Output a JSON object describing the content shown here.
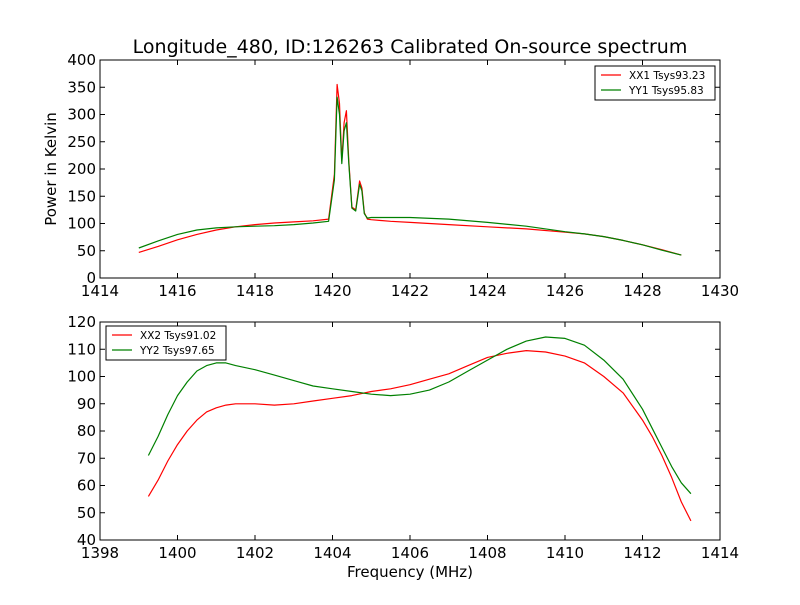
{
  "figure": {
    "title": "Longitude_480, ID:126263 Calibrated On-source spectrum",
    "ylabel": "Power in Kelvin",
    "xlabel": "Frequency (MHz)"
  },
  "chart_data": [
    {
      "type": "line",
      "title": "Longitude_480, ID:126263 Calibrated On-source spectrum",
      "xlabel": "",
      "ylabel": "Power in Kelvin",
      "xlim": [
        1414,
        1430
      ],
      "ylim": [
        0,
        400
      ],
      "xticks": [
        1414,
        1416,
        1418,
        1420,
        1422,
        1424,
        1426,
        1428,
        1430
      ],
      "yticks": [
        0,
        50,
        100,
        150,
        200,
        250,
        300,
        350,
        400
      ],
      "grid": false,
      "legend_position": "upper right",
      "series": [
        {
          "name": "XX1 Tsys93.23",
          "color": "#ff0000",
          "x": [
            1415.0,
            1415.5,
            1416.0,
            1416.5,
            1417.0,
            1417.5,
            1418.0,
            1418.5,
            1419.0,
            1419.5,
            1419.9,
            1420.05,
            1420.12,
            1420.18,
            1420.24,
            1420.3,
            1420.36,
            1420.42,
            1420.5,
            1420.6,
            1420.7,
            1420.76,
            1420.82,
            1420.9,
            1421.0,
            1421.5,
            1422.0,
            1423.0,
            1424.0,
            1425.0,
            1426.0,
            1426.5,
            1427.0,
            1427.5,
            1428.0,
            1428.5,
            1429.0
          ],
          "y": [
            47,
            58,
            70,
            80,
            88,
            94,
            98,
            101,
            103,
            105,
            108,
            190,
            355,
            320,
            215,
            285,
            307,
            215,
            130,
            125,
            178,
            165,
            120,
            108,
            107,
            104,
            102,
            98,
            94,
            90,
            84,
            81,
            76,
            69,
            61,
            52,
            42
          ]
        },
        {
          "name": "YY1 Tsys95.83",
          "color": "#008000",
          "x": [
            1415.0,
            1415.5,
            1416.0,
            1416.5,
            1417.0,
            1417.5,
            1418.0,
            1418.5,
            1419.0,
            1419.5,
            1419.9,
            1420.05,
            1420.12,
            1420.18,
            1420.24,
            1420.3,
            1420.36,
            1420.42,
            1420.5,
            1420.6,
            1420.7,
            1420.76,
            1420.82,
            1420.9,
            1421.0,
            1421.5,
            1422.0,
            1423.0,
            1424.0,
            1425.0,
            1426.0,
            1426.5,
            1427.0,
            1427.5,
            1428.0,
            1428.5,
            1429.0
          ],
          "y": [
            55,
            68,
            80,
            88,
            92,
            94,
            95,
            96,
            98,
            101,
            104,
            180,
            332,
            300,
            210,
            270,
            285,
            210,
            128,
            123,
            172,
            160,
            118,
            110,
            111,
            111,
            111,
            108,
            102,
            95,
            85,
            81,
            76,
            69,
            61,
            51,
            42
          ]
        }
      ]
    },
    {
      "type": "line",
      "title": "",
      "xlabel": "Frequency (MHz)",
      "ylabel": "",
      "xlim": [
        1398,
        1414
      ],
      "ylim": [
        40,
        120
      ],
      "xticks": [
        1398,
        1400,
        1402,
        1404,
        1406,
        1408,
        1410,
        1412,
        1414
      ],
      "yticks": [
        40,
        50,
        60,
        70,
        80,
        90,
        100,
        110,
        120
      ],
      "grid": false,
      "legend_position": "upper left",
      "series": [
        {
          "name": "XX2 Tsys91.02",
          "color": "#ff0000",
          "x": [
            1399.25,
            1399.5,
            1399.75,
            1400.0,
            1400.25,
            1400.5,
            1400.75,
            1401.0,
            1401.25,
            1401.5,
            1402.0,
            1402.5,
            1403.0,
            1403.5,
            1404.0,
            1404.5,
            1405.0,
            1405.5,
            1406.0,
            1406.5,
            1407.0,
            1407.5,
            1408.0,
            1408.5,
            1409.0,
            1409.5,
            1410.0,
            1410.5,
            1411.0,
            1411.5,
            1412.0,
            1412.25,
            1412.5,
            1412.75,
            1413.0,
            1413.25
          ],
          "y": [
            56,
            62,
            69,
            75,
            80,
            84,
            87,
            88.5,
            89.5,
            90,
            90,
            89.5,
            90,
            91,
            92,
            93,
            94.5,
            95.5,
            97,
            99,
            101,
            104,
            107,
            108.5,
            109.5,
            109,
            107.5,
            105,
            100,
            94,
            84,
            78,
            71,
            63,
            54,
            47
          ]
        },
        {
          "name": "YY2 Tsys97.65",
          "color": "#008000",
          "x": [
            1399.25,
            1399.5,
            1399.75,
            1400.0,
            1400.25,
            1400.5,
            1400.75,
            1401.0,
            1401.25,
            1401.5,
            1402.0,
            1402.5,
            1403.0,
            1403.5,
            1404.0,
            1404.5,
            1405.0,
            1405.5,
            1406.0,
            1406.5,
            1407.0,
            1407.5,
            1408.0,
            1408.5,
            1409.0,
            1409.5,
            1410.0,
            1410.5,
            1411.0,
            1411.5,
            1412.0,
            1412.25,
            1412.5,
            1412.75,
            1413.0,
            1413.25
          ],
          "y": [
            71,
            78,
            86,
            93,
            98,
            102,
            104,
            105,
            105,
            104,
            102.5,
            100.5,
            98.5,
            96.5,
            95.5,
            94.5,
            93.5,
            93,
            93.5,
            95,
            98,
            102,
            106,
            110,
            113,
            114.5,
            114,
            111.5,
            106,
            99,
            88,
            81,
            74,
            67,
            61,
            57
          ]
        }
      ]
    }
  ]
}
